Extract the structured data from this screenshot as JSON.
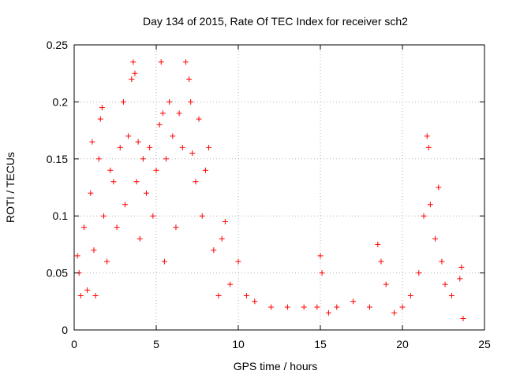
{
  "chart_data": {
    "type": "scatter",
    "title": "Day 134 of 2015, Rate Of TEC Index for receiver sch2",
    "xlabel": "GPS time / hours",
    "ylabel": "ROTI / TECUs",
    "xlim": [
      0,
      25
    ],
    "ylim": [
      0,
      0.25
    ],
    "x_ticks": [
      "0",
      "5",
      "10",
      "15",
      "20",
      "25"
    ],
    "y_ticks": [
      "0",
      "0.05",
      "0.1",
      "0.15",
      "0.2",
      "0.25"
    ],
    "grid": true,
    "marker": "plus",
    "color": "#ff0000",
    "series": [
      {
        "points": [
          [
            0.2,
            0.065
          ],
          [
            0.3,
            0.05
          ],
          [
            0.4,
            0.03
          ],
          [
            0.6,
            0.09
          ],
          [
            0.8,
            0.035
          ],
          [
            1.0,
            0.12
          ],
          [
            1.1,
            0.165
          ],
          [
            1.2,
            0.07
          ],
          [
            1.3,
            0.03
          ],
          [
            1.5,
            0.15
          ],
          [
            1.6,
            0.185
          ],
          [
            1.7,
            0.195
          ],
          [
            1.8,
            0.1
          ],
          [
            2.0,
            0.06
          ],
          [
            2.2,
            0.14
          ],
          [
            2.4,
            0.13
          ],
          [
            2.6,
            0.09
          ],
          [
            2.8,
            0.16
          ],
          [
            3.0,
            0.2
          ],
          [
            3.1,
            0.11
          ],
          [
            3.3,
            0.17
          ],
          [
            3.5,
            0.22
          ],
          [
            3.6,
            0.235
          ],
          [
            3.7,
            0.225
          ],
          [
            3.8,
            0.13
          ],
          [
            3.9,
            0.165
          ],
          [
            4.0,
            0.08
          ],
          [
            4.2,
            0.15
          ],
          [
            4.4,
            0.12
          ],
          [
            4.6,
            0.16
          ],
          [
            4.8,
            0.1
          ],
          [
            5.0,
            0.14
          ],
          [
            5.2,
            0.18
          ],
          [
            5.3,
            0.235
          ],
          [
            5.4,
            0.19
          ],
          [
            5.5,
            0.06
          ],
          [
            5.6,
            0.15
          ],
          [
            5.8,
            0.2
          ],
          [
            6.0,
            0.17
          ],
          [
            6.2,
            0.09
          ],
          [
            6.4,
            0.19
          ],
          [
            6.6,
            0.16
          ],
          [
            6.8,
            0.235
          ],
          [
            7.0,
            0.22
          ],
          [
            7.1,
            0.2
          ],
          [
            7.2,
            0.155
          ],
          [
            7.4,
            0.13
          ],
          [
            7.6,
            0.185
          ],
          [
            7.8,
            0.1
          ],
          [
            8.0,
            0.14
          ],
          [
            8.2,
            0.16
          ],
          [
            8.5,
            0.07
          ],
          [
            8.8,
            0.03
          ],
          [
            9.0,
            0.08
          ],
          [
            9.2,
            0.095
          ],
          [
            9.5,
            0.04
          ],
          [
            10.0,
            0.06
          ],
          [
            10.5,
            0.03
          ],
          [
            11.0,
            0.025
          ],
          [
            12.0,
            0.02
          ],
          [
            13.0,
            0.02
          ],
          [
            14.0,
            0.02
          ],
          [
            14.8,
            0.02
          ],
          [
            15.0,
            0.065
          ],
          [
            15.1,
            0.05
          ],
          [
            15.5,
            0.015
          ],
          [
            16.0,
            0.02
          ],
          [
            17.0,
            0.025
          ],
          [
            18.0,
            0.02
          ],
          [
            18.5,
            0.075
          ],
          [
            18.7,
            0.06
          ],
          [
            19.0,
            0.04
          ],
          [
            19.5,
            0.015
          ],
          [
            20.0,
            0.02
          ],
          [
            20.5,
            0.03
          ],
          [
            21.0,
            0.05
          ],
          [
            21.3,
            0.1
          ],
          [
            21.5,
            0.17
          ],
          [
            21.6,
            0.16
          ],
          [
            21.7,
            0.11
          ],
          [
            22.0,
            0.08
          ],
          [
            22.2,
            0.125
          ],
          [
            22.4,
            0.06
          ],
          [
            22.6,
            0.04
          ],
          [
            23.0,
            0.03
          ],
          [
            23.5,
            0.045
          ],
          [
            23.6,
            0.055
          ],
          [
            23.7,
            0.01
          ]
        ]
      }
    ]
  }
}
